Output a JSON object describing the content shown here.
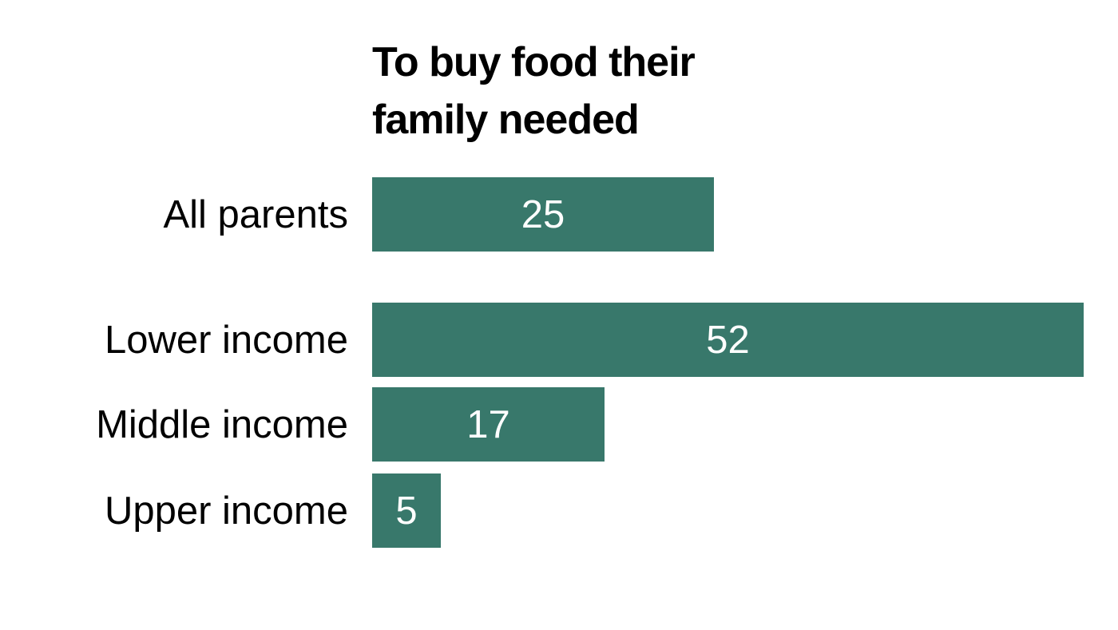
{
  "title": {
    "line1": "To buy food their",
    "line2": "family needed"
  },
  "chart_data": {
    "type": "bar",
    "orientation": "horizontal",
    "title": "To buy food their family needed",
    "categories": [
      "All parents",
      "Lower income",
      "Middle income",
      "Upper income"
    ],
    "values": [
      25,
      52,
      17,
      5
    ],
    "xlim": [
      0,
      52
    ],
    "grid": false,
    "legend": false,
    "value_labels_inside_bars": true,
    "bar_color": "#38786b",
    "value_label_color": "#ffffff",
    "category_label_color": "#000000",
    "title_color": "#000000",
    "background_color": "#ffffff",
    "group_break_after_index": 0
  }
}
